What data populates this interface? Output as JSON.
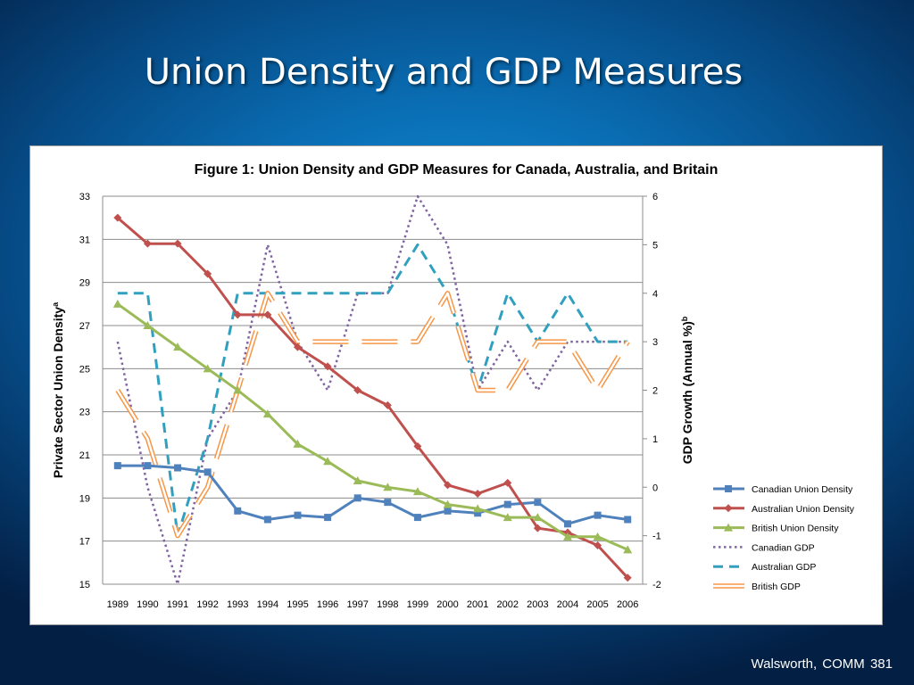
{
  "slide": {
    "title": "Union Density and GDP Measures",
    "footer": "Walsworth, COMM  381"
  },
  "chart_data": {
    "type": "line",
    "title": "Figure 1: Union Density and GDP Measures for Canada, Australia, and Britain",
    "ylabel_left": "Private Sector Union Density",
    "ylabel_left_sup": "a",
    "ylabel_right": "GDP  Growth (Annual %)",
    "ylabel_right_sup": "b",
    "categories": [
      "1989",
      "1990",
      "1991",
      "1992",
      "1993",
      "1994",
      "1995",
      "1996",
      "1997",
      "1998",
      "1999",
      "2000",
      "2001",
      "2002",
      "2003",
      "2004",
      "2005",
      "2006"
    ],
    "ylim_left": [
      15,
      33
    ],
    "yticks_left": [
      15,
      17,
      19,
      21,
      23,
      25,
      27,
      29,
      31,
      33
    ],
    "ylim_right": [
      -2,
      6
    ],
    "yticks_right": [
      -2,
      -1,
      0,
      1,
      2,
      3,
      4,
      5,
      6
    ],
    "grid": true,
    "legend_position": "bottom-right",
    "series": [
      {
        "name": "Canadian Union Density",
        "axis": "left",
        "color": "#4f81bd",
        "style": "solid",
        "marker": "square",
        "values": [
          20.5,
          20.5,
          20.4,
          20.2,
          18.4,
          18.0,
          18.2,
          18.1,
          19.0,
          18.8,
          18.1,
          18.4,
          18.3,
          18.7,
          18.8,
          17.8,
          18.2,
          18.0
        ]
      },
      {
        "name": "Australian Union Density",
        "axis": "left",
        "color": "#c0504d",
        "style": "solid",
        "marker": "diamond",
        "values": [
          32.0,
          30.8,
          30.8,
          29.4,
          27.5,
          27.5,
          26.0,
          25.1,
          24.0,
          23.3,
          21.4,
          19.6,
          19.2,
          19.7,
          17.6,
          17.4,
          16.8,
          15.3
        ]
      },
      {
        "name": "British Union Density",
        "axis": "left",
        "color": "#9bbb59",
        "style": "solid",
        "marker": "triangle",
        "values": [
          28.0,
          27.0,
          26.0,
          25.0,
          24.0,
          22.9,
          21.5,
          20.7,
          19.8,
          19.5,
          19.3,
          18.7,
          18.5,
          18.1,
          18.1,
          17.2,
          17.2,
          16.6
        ]
      },
      {
        "name": "Canadian GDP",
        "axis": "right",
        "color": "#8064a2",
        "style": "dotted",
        "marker": "none",
        "values": [
          3.0,
          0.0,
          -2.0,
          1.0,
          2.0,
          5.0,
          3.0,
          2.0,
          4.0,
          4.0,
          6.0,
          5.0,
          2.0,
          3.0,
          2.0,
          3.0,
          3.0,
          3.0
        ]
      },
      {
        "name": "Australian GDP",
        "axis": "right",
        "color": "#31a0bf",
        "style": "dashed",
        "marker": "none",
        "values": [
          4.0,
          4.0,
          -1.0,
          1.0,
          4.0,
          4.0,
          4.0,
          4.0,
          4.0,
          4.0,
          5.0,
          4.0,
          2.0,
          4.0,
          3.0,
          4.0,
          3.0,
          3.0
        ]
      },
      {
        "name": "British GDP",
        "axis": "right",
        "color": "#f79646",
        "style": "outlined-dash",
        "marker": "none",
        "values": [
          2.0,
          1.0,
          -1.0,
          0.0,
          2.0,
          4.0,
          3.0,
          3.0,
          3.0,
          3.0,
          3.0,
          4.0,
          2.0,
          2.0,
          3.0,
          3.0,
          2.0,
          3.0
        ]
      }
    ]
  }
}
